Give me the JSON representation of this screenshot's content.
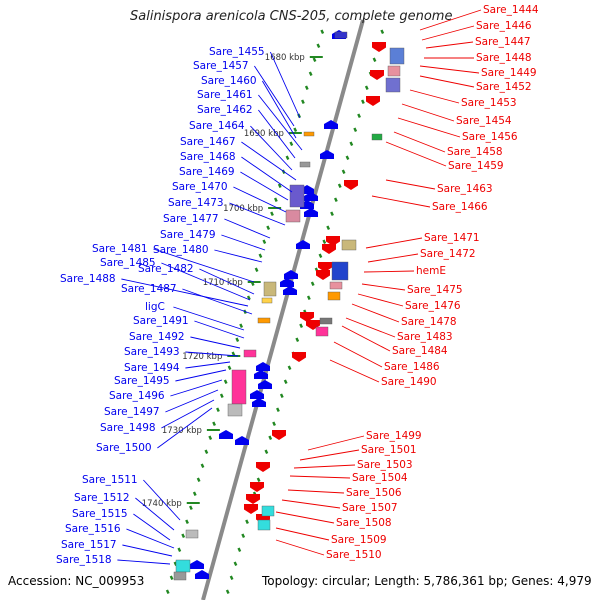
{
  "title": "Salinispora arenicola CNS-205, complete genome",
  "footer": {
    "accession": "Accession: NC_009953",
    "topology": "Topology: circular; Length: 5,786,361 bp; Genes: 4,979"
  },
  "colors": {
    "reverse_strand": "#0000ee",
    "forward_strand": "#ee0000",
    "backbone": "#888888",
    "ticks": "#228822"
  },
  "scale_labels": [
    "1680 kbp",
    "1690 kbp",
    "1700 kbp",
    "1710 kbp",
    "1720 kbp",
    "1730 kbp",
    "1740 kbp"
  ],
  "left_genes": [
    "Sare_1455",
    "Sare_1457",
    "Sare_1460",
    "Sare_1461",
    "Sare_1462",
    "Sare_1464",
    "Sare_1467",
    "Sare_1468",
    "Sare_1469",
    "Sare_1470",
    "Sare_1473",
    "Sare_1477",
    "Sare_1479",
    "Sare_1480",
    "Sare_1481",
    "Sare_1482",
    "Sare_1485",
    "Sare_1488",
    "Sare_1487",
    "ligC",
    "Sare_1491",
    "Sare_1492",
    "Sare_1493",
    "Sare_1494",
    "Sare_1495",
    "Sare_1496",
    "Sare_1497",
    "Sare_1498",
    "Sare_1500",
    "Sare_1511",
    "Sare_1512",
    "Sare_1515",
    "Sare_1516",
    "Sare_1517",
    "Sare_1518"
  ],
  "right_genes": [
    "Sare_1444",
    "Sare_1446",
    "Sare_1447",
    "Sare_1448",
    "Sare_1449",
    "Sare_1452",
    "Sare_1453",
    "Sare_1454",
    "Sare_1456",
    "Sare_1458",
    "Sare_1459",
    "Sare_1463",
    "Sare_1466",
    "Sare_1471",
    "Sare_1472",
    "hemE",
    "Sare_1475",
    "Sare_1476",
    "Sare_1478",
    "Sare_1483",
    "Sare_1484",
    "Sare_1486",
    "Sare_1490",
    "Sare_1499",
    "Sare_1501",
    "Sare_1503",
    "Sare_1504",
    "Sare_1506",
    "Sare_1507",
    "Sare_1508",
    "Sare_1509",
    "Sare_1510"
  ]
}
